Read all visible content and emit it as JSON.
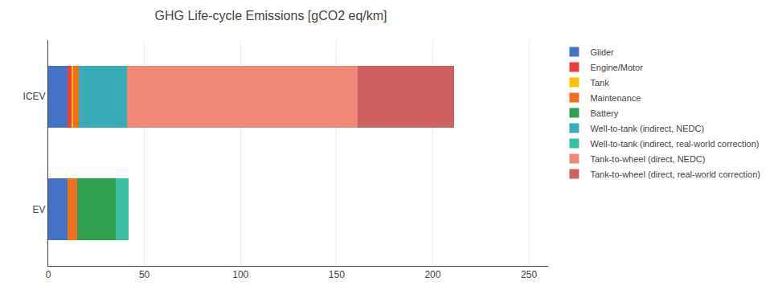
{
  "chart_data": {
    "type": "bar",
    "title": "GHG Life-cycle Emissions [gCO2 eq/km]",
    "orientation": "horizontal",
    "stacked": true,
    "categories": [
      "EV",
      "ICEV"
    ],
    "series": [
      {
        "name": "Glider",
        "color": "#4472C4",
        "values": [
          10,
          10
        ]
      },
      {
        "name": "Engine/Motor",
        "color": "#E84040",
        "values": [
          0,
          2
        ]
      },
      {
        "name": "Tank",
        "color": "#FFC000",
        "values": [
          0,
          1
        ]
      },
      {
        "name": "Maintenance",
        "color": "#F07020",
        "values": [
          5,
          3
        ]
      },
      {
        "name": "Battery",
        "color": "#2EA050",
        "values": [
          20,
          0
        ]
      },
      {
        "name": "Well-to-tank (indirect, NEDC)",
        "color": "#3AACB8",
        "values": [
          0,
          25
        ]
      },
      {
        "name": "Well-to-tank (indirect, real-world correction)",
        "color": "#3ABFA0",
        "values": [
          7,
          0
        ]
      },
      {
        "name": "Tank-to-wheel (direct, NEDC)",
        "color": "#F08878",
        "values": [
          0,
          120
        ]
      },
      {
        "name": "Tank-to-wheel (direct, real-world correction)",
        "color": "#D06060",
        "values": [
          0,
          50
        ]
      }
    ],
    "xlim": [
      0,
      260
    ],
    "xticks": [
      0,
      50,
      100,
      150,
      200,
      250
    ],
    "grid": true,
    "legend": "upper right"
  }
}
